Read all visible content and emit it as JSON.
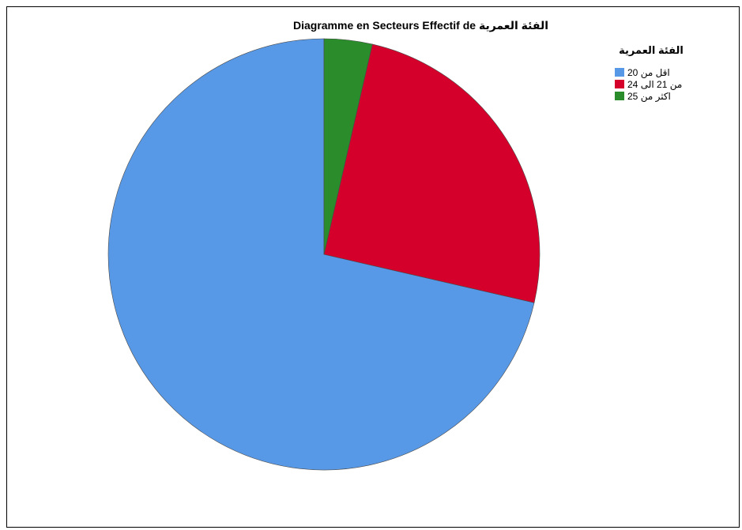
{
  "chart_data": {
    "type": "pie",
    "title": "Diagramme en Secteurs Effectif de الفئة العمرية",
    "legend_title": "الفئة العمرية",
    "legend_position": "top-right",
    "categories": [
      "اقل من 20",
      "من 21 الى 24",
      "اكثر من 25"
    ],
    "values": [
      71.4,
      25.0,
      3.6
    ],
    "colors": [
      "#5899e7",
      "#d4002b",
      "#2a8c2a"
    ]
  }
}
